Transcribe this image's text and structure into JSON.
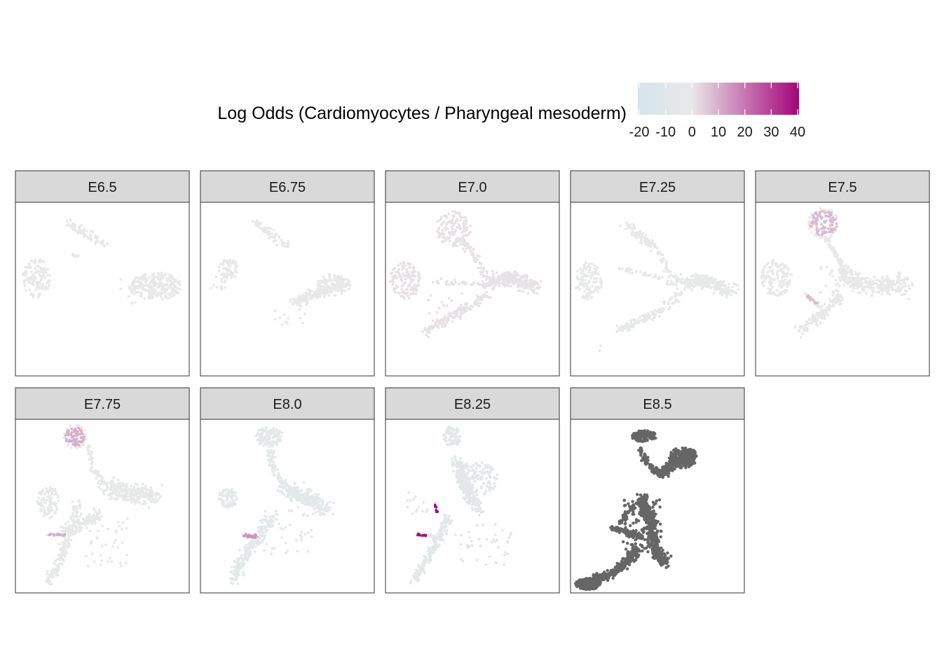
{
  "chart_data": {
    "type": "scatter",
    "subtype": "faceted-umap",
    "legend": {
      "title": "Log Odds (Cardiomyocytes / Pharyngeal mesoderm)",
      "placement": "top",
      "ticks": [
        -20,
        -10,
        0,
        10,
        20,
        30,
        40
      ],
      "tick_labels": [
        "-20",
        "-10",
        "0",
        "10",
        "20",
        "30",
        "40"
      ],
      "range": [
        -20,
        40
      ],
      "colors": {
        "low": "#d5e5ee",
        "mid": "#e8e8e8",
        "high": "#a3047a"
      }
    },
    "na_color": "#666666",
    "panels": [
      {
        "label": "E6.5",
        "mode": "score",
        "value": 0,
        "highlight": null
      },
      {
        "label": "E6.75",
        "mode": "score",
        "value": 0,
        "highlight": null
      },
      {
        "label": "E7.0",
        "mode": "score",
        "value": 1,
        "highlight": null
      },
      {
        "label": "E7.25",
        "mode": "score",
        "value": -1,
        "highlight": null
      },
      {
        "label": "E7.5",
        "mode": "score",
        "value": 0,
        "highlight": 8
      },
      {
        "label": "E7.75",
        "mode": "score",
        "value": -1,
        "highlight": 10
      },
      {
        "label": "E8.0",
        "mode": "score",
        "value": -3,
        "highlight": 15
      },
      {
        "label": "E8.25",
        "mode": "score",
        "value": -5,
        "highlight": 38
      },
      {
        "label": "E8.5",
        "mode": "na",
        "value": null,
        "highlight": null
      }
    ]
  }
}
